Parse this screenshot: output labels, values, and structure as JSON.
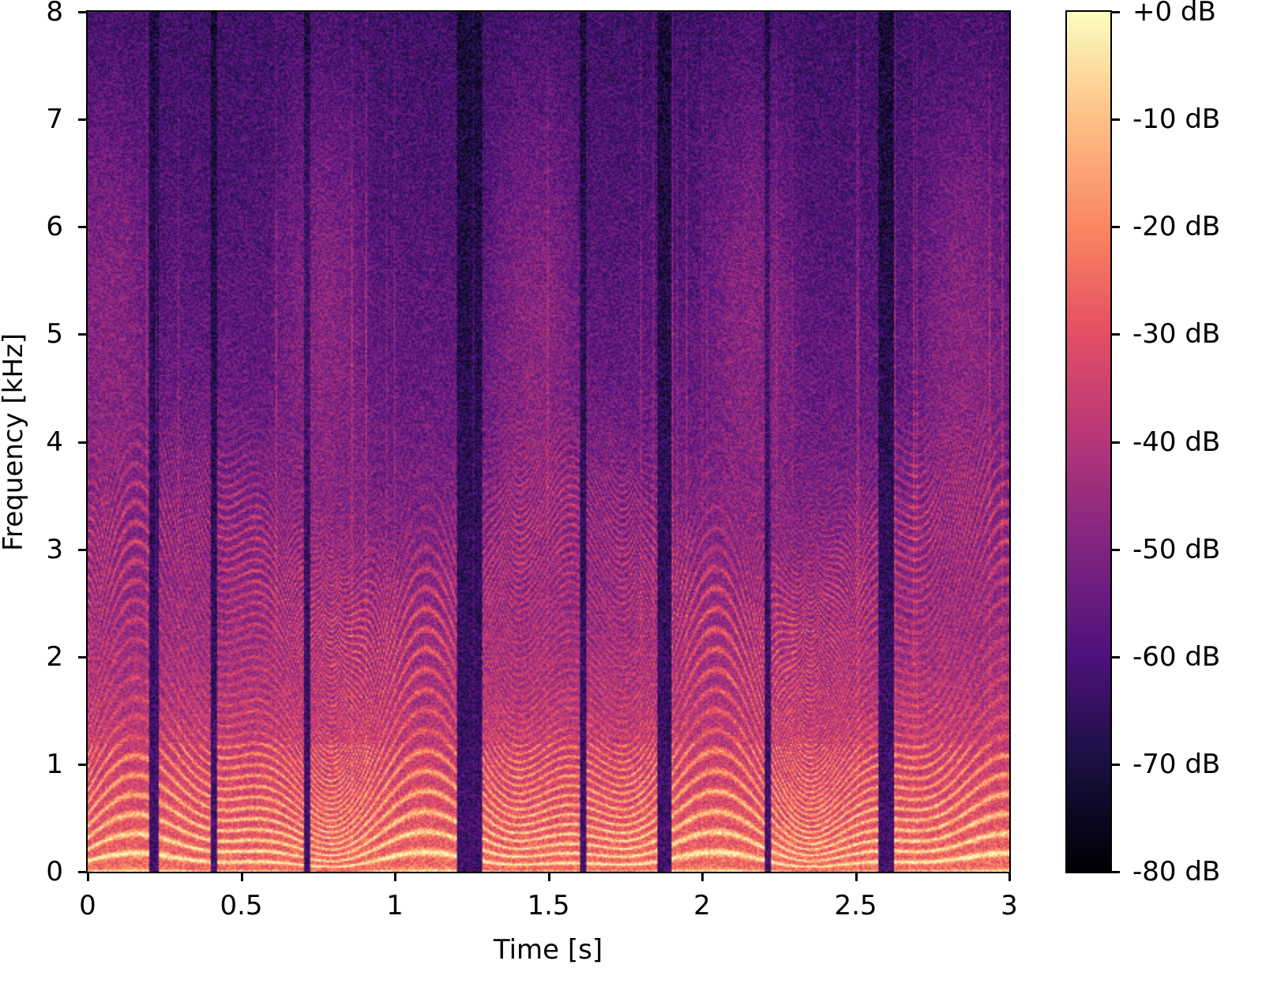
{
  "chart_data": {
    "type": "heatmap",
    "title": "",
    "xlabel": "Time [s]",
    "ylabel": "Frequency [kHz]",
    "xlim": [
      0,
      3
    ],
    "ylim": [
      0,
      8
    ],
    "xticks": [
      0,
      0.5,
      1,
      1.5,
      2,
      2.5,
      3
    ],
    "xtick_labels": [
      "0",
      "0.5",
      "1",
      "1.5",
      "2",
      "2.5",
      "3"
    ],
    "yticks": [
      0,
      1,
      2,
      3,
      4,
      5,
      6,
      7,
      8
    ],
    "ytick_labels": [
      "0",
      "1",
      "2",
      "3",
      "4",
      "5",
      "6",
      "7",
      "8"
    ],
    "colormap": "magma",
    "colorbar": {
      "range_db": [
        -80,
        0
      ],
      "ticks": [
        0,
        -10,
        -20,
        -30,
        -40,
        -50,
        -60,
        -70,
        -80
      ],
      "tick_labels": [
        "+0 dB",
        "-10 dB",
        "-20 dB",
        "-30 dB",
        "-40 dB",
        "-50 dB",
        "-60 dB",
        "-70 dB",
        "-80 dB"
      ]
    },
    "voiced_segments_s": [
      [
        0.0,
        0.2
      ],
      [
        0.23,
        0.4
      ],
      [
        0.42,
        0.7
      ],
      [
        0.72,
        1.2
      ],
      [
        1.28,
        1.6
      ],
      [
        1.62,
        1.85
      ],
      [
        1.9,
        2.2
      ],
      [
        2.22,
        2.57
      ],
      [
        2.62,
        3.0
      ]
    ]
  }
}
